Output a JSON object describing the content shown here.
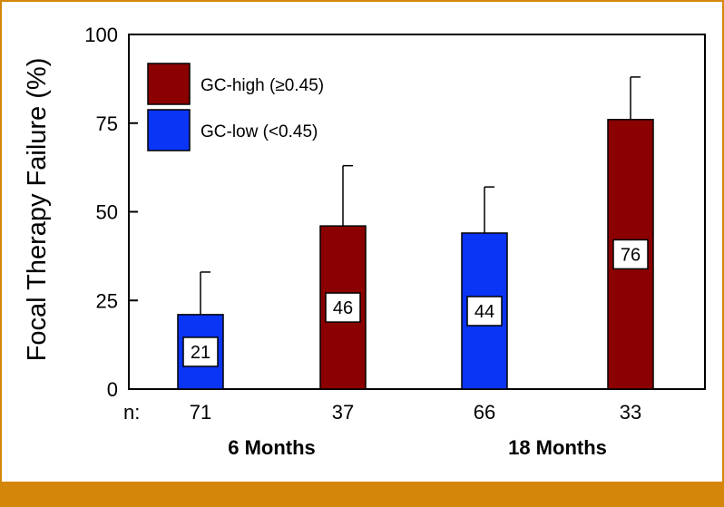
{
  "chart_data": {
    "type": "bar",
    "ylabel": "Focal Therapy Failure (%)",
    "ylim": [
      0,
      100
    ],
    "yticks": [
      0,
      25,
      50,
      75,
      100
    ],
    "n_label": "n:",
    "groups": [
      {
        "name": "6 Months",
        "bars": [
          0,
          1
        ]
      },
      {
        "name": "18 Months",
        "bars": [
          2,
          3
        ]
      }
    ],
    "bars": [
      {
        "series": "GC-low (<0.45)",
        "value": 21,
        "label": "21",
        "error_upper": 33,
        "n": "71"
      },
      {
        "series": "GC-high (≥0.45)",
        "value": 46,
        "label": "46",
        "error_upper": 63,
        "n": "37"
      },
      {
        "series": "GC-low (<0.45)",
        "value": 44,
        "label": "44",
        "error_upper": 57,
        "n": "66"
      },
      {
        "series": "GC-high (≥0.45)",
        "value": 76,
        "label": "76",
        "error_upper": 88,
        "n": "33"
      }
    ],
    "legend": [
      {
        "name": "GC-high (≥0.45)",
        "color": "#8b0000"
      },
      {
        "name": "GC-low (<0.45)",
        "color": "#0a35f5"
      }
    ],
    "legend_position": "top-left"
  },
  "colors": {
    "frame": "#d4860b",
    "high": "#8b0000",
    "low": "#0a35f5"
  }
}
